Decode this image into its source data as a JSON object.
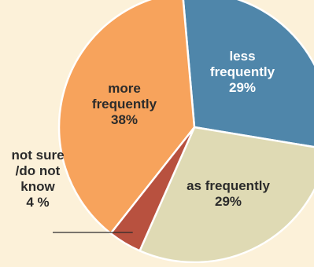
{
  "chart_data": {
    "type": "pie",
    "slices": [
      {
        "label": [
          "less",
          "frequently"
        ],
        "pct_text": "29%",
        "value": 29,
        "color": "#4f86aa",
        "text_color": "#ffffff"
      },
      {
        "label": [
          "as frequently"
        ],
        "pct_text": "29%",
        "value": 29,
        "color": "#dfdab4",
        "text_color": "#2b2b2b"
      },
      {
        "label": [
          "not sure",
          "/do not",
          "know"
        ],
        "pct_text": "4 %",
        "value": 4,
        "color": "#b8513f",
        "text_color": "#2b2b2b"
      },
      {
        "label": [
          "more",
          "frequently"
        ],
        "pct_text": "38%",
        "value": 38,
        "color": "#f7a35c",
        "text_color": "#2b2b2b"
      }
    ],
    "colors": {
      "background": "#fcf1d9",
      "leader_line": "#2b2b2b"
    }
  }
}
